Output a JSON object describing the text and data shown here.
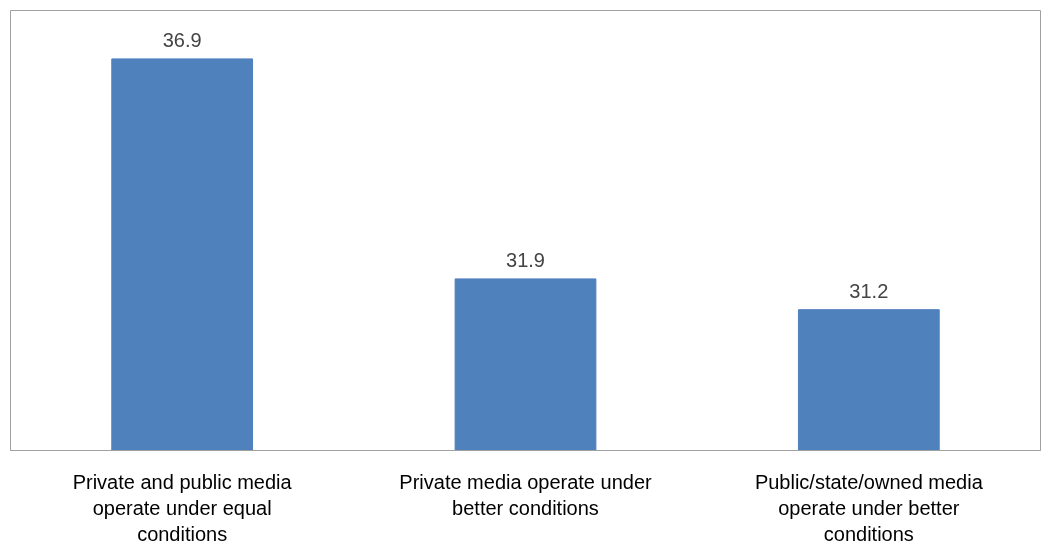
{
  "chart_data": {
    "type": "bar",
    "categories": [
      "Private and public media operate under equal conditions",
      "Private media operate under better conditions",
      "Public/state/owned media operate under better conditions"
    ],
    "values": [
      36.9,
      31.9,
      31.2
    ],
    "color": "#4f81bd",
    "ylim": [
      28,
      38
    ],
    "data_labels": true,
    "grid": false
  }
}
